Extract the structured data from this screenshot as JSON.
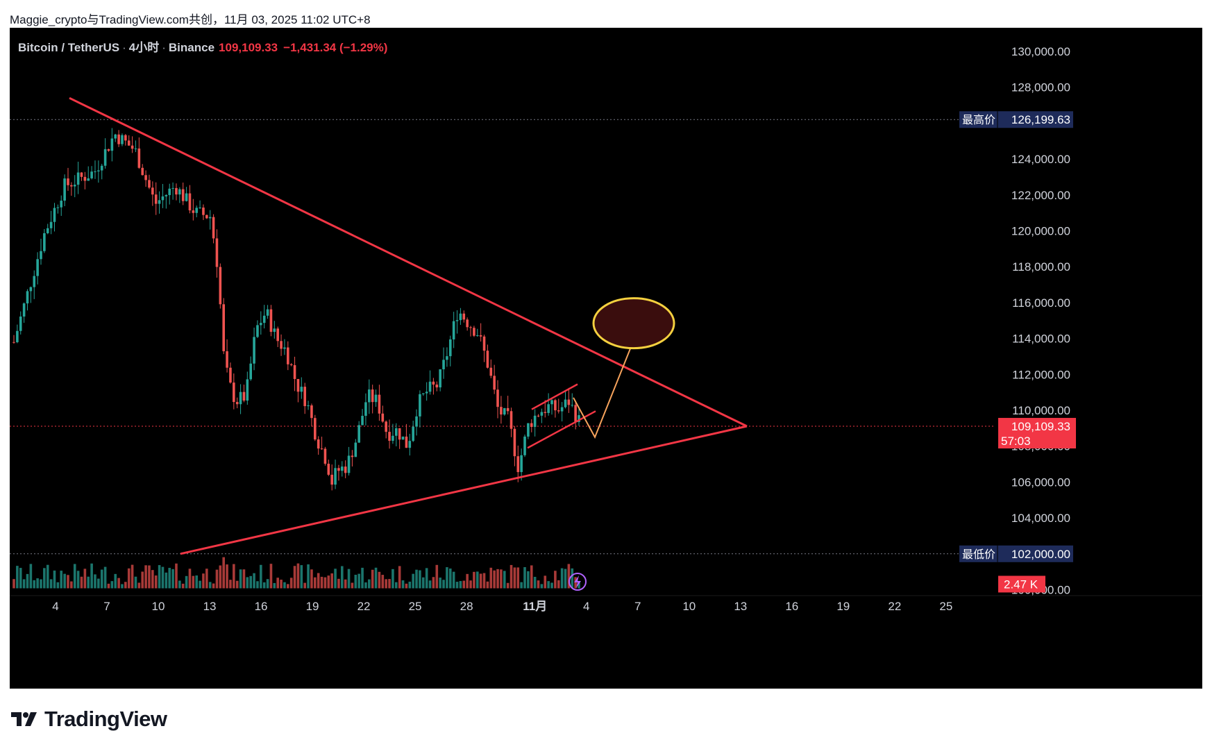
{
  "share_caption": "Maggie_crypto与TradingView.com共创，11月 03, 2025 11:02 UTC+8",
  "legend": {
    "symbol": "Bitcoin / TetherUS",
    "interval": "4小时",
    "exchange": "Binance",
    "last_price": "109,109.33",
    "change": "−1,431.34 (−1.29%)"
  },
  "price_axis": {
    "ticks": [
      "130,000.00",
      "128,000.00",
      "124,000.00",
      "122,000.00",
      "120,000.00",
      "118,000.00",
      "116,000.00",
      "114,000.00",
      "112,000.00",
      "110,000.00",
      "108,000.00",
      "106,000.00",
      "104,000.00",
      "100,000.00"
    ],
    "tick_values": [
      130000,
      128000,
      124000,
      122000,
      120000,
      118000,
      116000,
      114000,
      112000,
      110000,
      108000,
      106000,
      104000,
      100000
    ],
    "high_label": "最高价",
    "high_value": "126,199.63",
    "low_label": "最低价",
    "low_value": "102,000.00",
    "current_price": "109,109.33",
    "countdown": "57:03",
    "volume_label": "2.47 K"
  },
  "time_axis": {
    "labels": [
      "4",
      "7",
      "10",
      "13",
      "16",
      "19",
      "22",
      "25",
      "28",
      "11月",
      "4",
      "7",
      "10",
      "13",
      "16",
      "19",
      "22",
      "25"
    ]
  },
  "colors": {
    "up": "#26a69a",
    "down": "#ef5350",
    "trendline": "#f23645",
    "projection": "#f7a35c",
    "target_ellipse_fill": "#3a0d0d",
    "target_ellipse_stroke": "#f4d03f",
    "badge_bg": "#1e2b5a",
    "price_badge_bg": "#f23645"
  },
  "icons": {
    "flash": "lightning-icon",
    "logo": "tradingview-logo-icon"
  },
  "brand": {
    "wordmark": "TradingView"
  },
  "chart_data": {
    "type": "candlestick",
    "symbol": "BTCUSDT",
    "interval": "4h",
    "high": 126199.63,
    "low": 102000.0,
    "last": 109109.33,
    "ylim": [
      100000,
      131000
    ],
    "trendlines": [
      {
        "name": "upper",
        "from": {
          "x": "Oct 4",
          "y": 125400
        },
        "to": {
          "x": "Nov 13",
          "y": 109100
        }
      },
      {
        "name": "lower",
        "from": {
          "x": "Oct 11",
          "y": 102000
        },
        "to": {
          "x": "Nov 13",
          "y": 109100
        }
      }
    ],
    "projection_target": 114500
  }
}
